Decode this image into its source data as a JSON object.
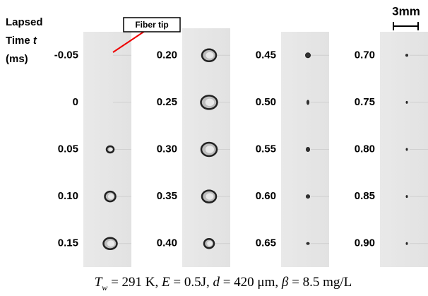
{
  "header": {
    "line1": "Lapsed",
    "line2": "Time",
    "variable": "t",
    "line3": "(ms)"
  },
  "annotation": "Fiber tip",
  "scale_bar": "3mm",
  "times": [
    [
      "-0.05",
      "0",
      "0.05",
      "0.10",
      "0.15"
    ],
    [
      "0.20",
      "0.25",
      "0.30",
      "0.35",
      "0.40"
    ],
    [
      "0.45",
      "0.50",
      "0.55",
      "0.60",
      "0.65"
    ],
    [
      "0.70",
      "0.75",
      "0.80",
      "0.85",
      "0.90"
    ]
  ],
  "caption": [
    "T",
    "w",
    " = 291 K, ",
    "E",
    " = 0.5J, ",
    "d",
    " = 420 μm, ",
    "β",
    " = 8.5 mg/L"
  ]
}
